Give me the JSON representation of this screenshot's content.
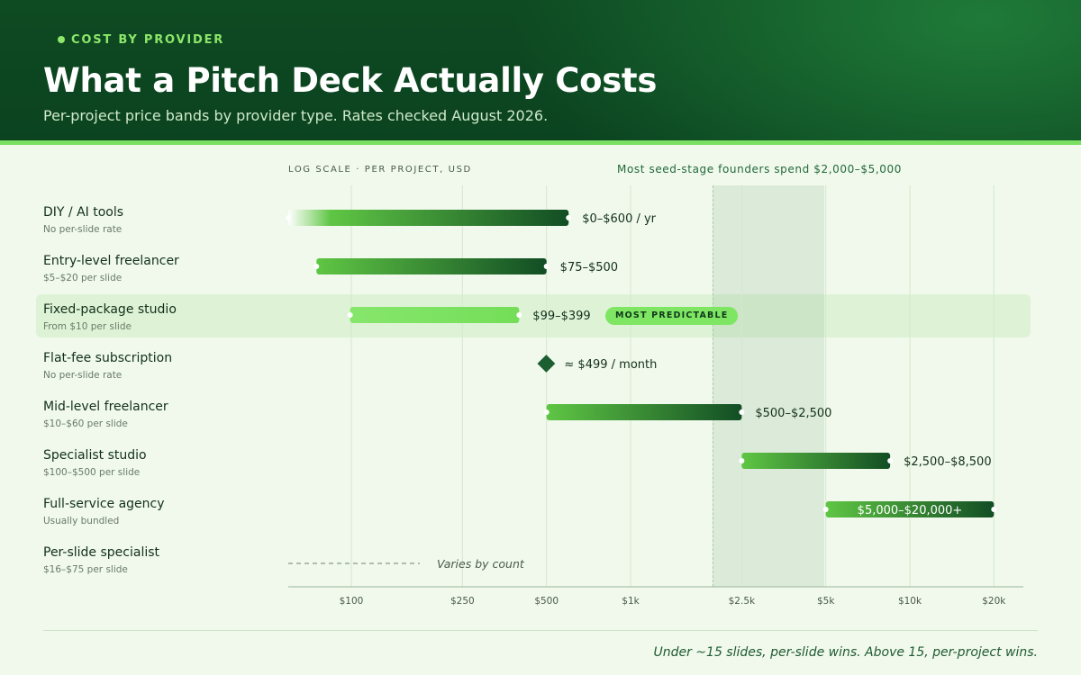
{
  "header": {
    "kicker": "COST BY PROVIDER",
    "title": "What a Pitch Deck Actually Costs",
    "subtitle": "Per-project price bands by provider type. Rates checked August 2026."
  },
  "axis_note": "LOG SCALE · PER PROJECT, USD",
  "founder_note": "Most seed-stage founders spend $2,000–$5,000",
  "highlight_badge": "MOST PREDICTABLE",
  "footer_note": "Under ~15 slides, per-slide wins. Above 15, per-project wins.",
  "colors": {
    "header_bg": "#0b4320",
    "accent": "#7be062",
    "bar_dark": "#124d24",
    "bar_light": "#5fc644",
    "bar_pale": "#86e66c"
  },
  "chart_data": {
    "type": "range-bar",
    "scale": "log",
    "xlim": [
      72,
      26000
    ],
    "ticks": [
      {
        "value": 100,
        "label": "$100"
      },
      {
        "value": 250,
        "label": "$250"
      },
      {
        "value": 500,
        "label": "$500"
      },
      {
        "value": 1000,
        "label": "$1k"
      },
      {
        "value": 2500,
        "label": "$2.5k"
      },
      {
        "value": 5000,
        "label": "$5k"
      },
      {
        "value": 10000,
        "label": "$10k"
      },
      {
        "value": 20000,
        "label": "$20k"
      }
    ],
    "shaded_range": [
      2000,
      5000
    ],
    "rows": [
      {
        "name": "DIY / AI tools",
        "sub": "No per-slide rate",
        "kind": "bar",
        "min": 0,
        "max": 600,
        "label": "$0–$600 / yr",
        "style": "fade"
      },
      {
        "name": "Entry-level freelancer",
        "sub": "$5–$20 per slide",
        "kind": "bar",
        "min": 75,
        "max": 500,
        "label": "$75–$500",
        "style": "normal"
      },
      {
        "name": "Fixed-package studio",
        "sub": "From $10 per slide",
        "kind": "bar",
        "min": 99,
        "max": 399,
        "label": "$99–$399",
        "style": "pale",
        "highlight": true
      },
      {
        "name": "Flat-fee subscription",
        "sub": "No per-slide rate",
        "kind": "point",
        "value": 499,
        "label": "≈ $499 / month"
      },
      {
        "name": "Mid-level freelancer",
        "sub": "$10–$60 per slide",
        "kind": "bar",
        "min": 500,
        "max": 2500,
        "label": "$500–$2,500",
        "style": "normal"
      },
      {
        "name": "Specialist studio",
        "sub": "$100–$500 per slide",
        "kind": "bar",
        "min": 2500,
        "max": 8500,
        "label": "$2,500–$8,500",
        "style": "normal"
      },
      {
        "name": "Full-service agency",
        "sub": "Usually bundled",
        "kind": "bar",
        "min": 5000,
        "max": 20000,
        "label": "$5,000–$20,000+",
        "style": "normal",
        "label_inside": true
      },
      {
        "name": "Per-slide specialist",
        "sub": "$16–$75 per slide",
        "kind": "none",
        "label": "Varies by count"
      }
    ]
  }
}
